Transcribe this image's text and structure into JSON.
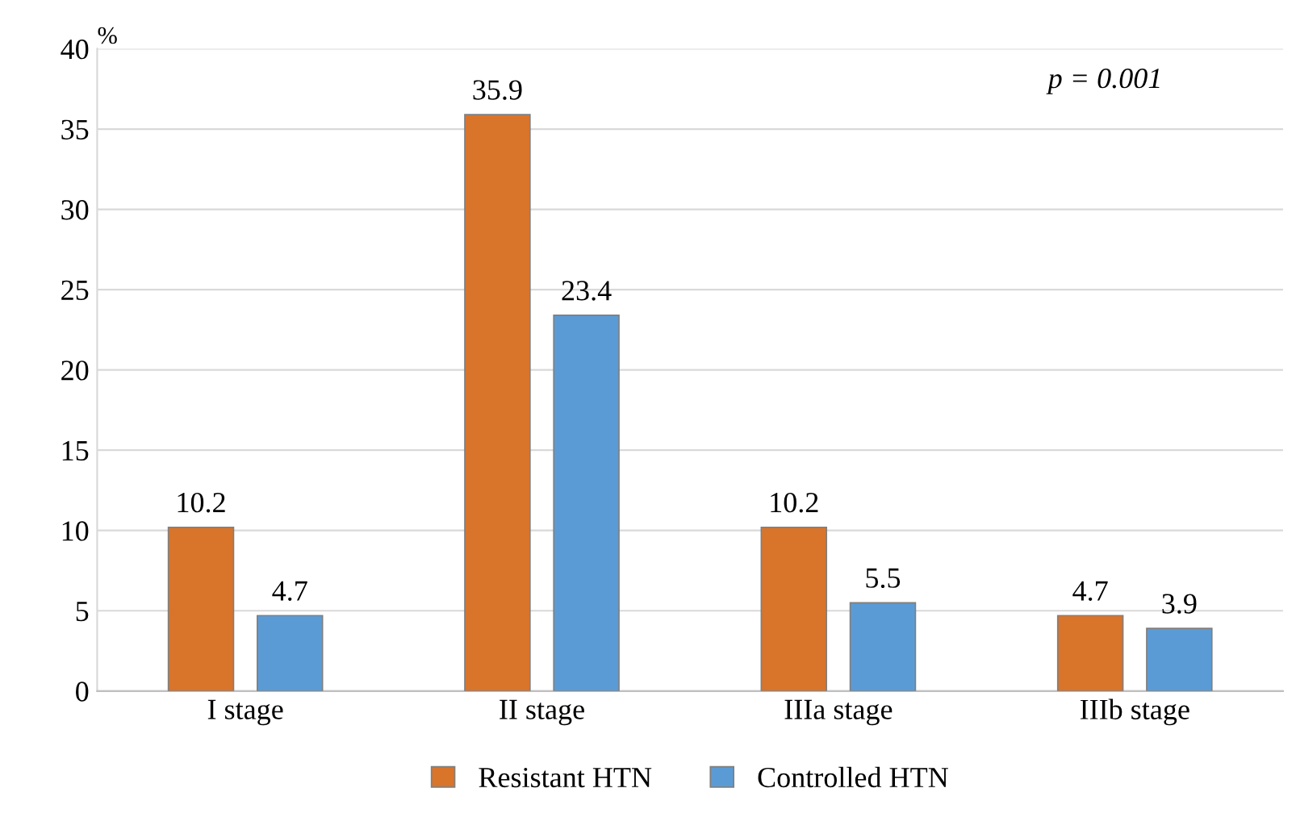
{
  "chart_data": {
    "type": "bar",
    "categories": [
      "I stage",
      "II stage",
      "IIIa stage",
      "IIIb stage"
    ],
    "series": [
      {
        "name": "Resistant HTN",
        "color": "#d9742b",
        "values": [
          10.2,
          35.9,
          10.2,
          4.7
        ]
      },
      {
        "name": "Controlled HTN",
        "color": "#5b9bd5",
        "values": [
          4.7,
          23.4,
          5.5,
          3.9
        ]
      }
    ],
    "ylabel": "%",
    "ylim": [
      0,
      40
    ],
    "yticks": [
      0,
      5,
      10,
      15,
      20,
      25,
      30,
      35,
      40
    ],
    "grid": "y",
    "legend": "bottom",
    "data_labels": true,
    "annotations": [
      "p = 0.001"
    ]
  }
}
